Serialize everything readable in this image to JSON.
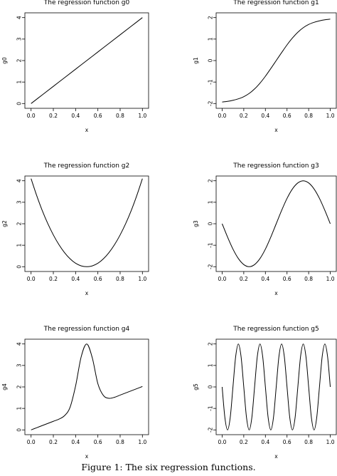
{
  "caption": "Figure 1: The six regression functions.",
  "chart_data": [
    {
      "type": "line",
      "title": "The regression function g0",
      "xlabel": "x",
      "ylabel": "g0",
      "xlim": [
        0,
        1
      ],
      "ylim": [
        0,
        4
      ],
      "xticks": [
        "0.0",
        "0.2",
        "0.4",
        "0.6",
        "0.8",
        "1.0"
      ],
      "yticks": [
        "0",
        "1",
        "2",
        "3",
        "4"
      ],
      "x": [
        0.0,
        0.1,
        0.2,
        0.3,
        0.4,
        0.5,
        0.6,
        0.7,
        0.8,
        0.9,
        1.0
      ],
      "y": [
        0.0,
        0.4,
        0.8,
        1.2,
        1.6,
        2.0,
        2.4,
        2.8,
        3.2,
        3.6,
        4.0
      ]
    },
    {
      "type": "line",
      "title": "The regression function g1",
      "xlabel": "x",
      "ylabel": "g1",
      "xlim": [
        0,
        1
      ],
      "ylim": [
        -2,
        2
      ],
      "xticks": [
        "0.0",
        "0.2",
        "0.4",
        "0.6",
        "0.8",
        "1.0"
      ],
      "yticks": [
        "-2",
        "-1",
        "0",
        "1",
        "2"
      ],
      "x": [
        0.0,
        0.05,
        0.1,
        0.15,
        0.2,
        0.25,
        0.3,
        0.35,
        0.4,
        0.45,
        0.5,
        0.55,
        0.6,
        0.65,
        0.7,
        0.75,
        0.8,
        0.85,
        0.9,
        0.95,
        1.0
      ],
      "y": [
        -1.93,
        -1.9,
        -1.85,
        -1.78,
        -1.68,
        -1.53,
        -1.32,
        -1.05,
        -0.73,
        -0.37,
        0.0,
        0.37,
        0.73,
        1.05,
        1.32,
        1.53,
        1.68,
        1.78,
        1.85,
        1.9,
        1.93
      ]
    },
    {
      "type": "line",
      "title": "The regression function g2",
      "xlabel": "x",
      "ylabel": "g2",
      "xlim": [
        0,
        1
      ],
      "ylim": [
        0,
        4
      ],
      "xticks": [
        "0.0",
        "0.2",
        "0.4",
        "0.6",
        "0.8",
        "1.0"
      ],
      "yticks": [
        "0",
        "1",
        "2",
        "3",
        "4"
      ],
      "x": [
        0.0,
        0.05,
        0.1,
        0.15,
        0.2,
        0.25,
        0.3,
        0.35,
        0.4,
        0.45,
        0.5,
        0.55,
        0.6,
        0.65,
        0.7,
        0.75,
        0.8,
        0.85,
        0.9,
        0.95,
        1.0
      ],
      "y": [
        4.1,
        3.32,
        2.62,
        2.01,
        1.48,
        1.03,
        0.66,
        0.37,
        0.16,
        0.04,
        0.0,
        0.04,
        0.16,
        0.37,
        0.66,
        1.03,
        1.48,
        2.01,
        2.62,
        3.32,
        4.1
      ]
    },
    {
      "type": "line",
      "title": "The regression function g3",
      "xlabel": "x",
      "ylabel": "g3",
      "xlim": [
        0,
        1
      ],
      "ylim": [
        -2,
        2
      ],
      "xticks": [
        "0.0",
        "0.2",
        "0.4",
        "0.6",
        "0.8",
        "1.0"
      ],
      "yticks": [
        "-2",
        "-1",
        "0",
        "1",
        "2"
      ],
      "x": [
        0.0,
        0.05,
        0.1,
        0.15,
        0.2,
        0.25,
        0.3,
        0.35,
        0.4,
        0.45,
        0.5,
        0.55,
        0.6,
        0.65,
        0.7,
        0.75,
        0.8,
        0.85,
        0.9,
        0.95,
        1.0
      ],
      "y": [
        0.0,
        -0.62,
        -1.18,
        -1.62,
        -1.9,
        -2.0,
        -1.9,
        -1.62,
        -1.18,
        -0.62,
        0.0,
        0.62,
        1.18,
        1.62,
        1.9,
        2.0,
        1.9,
        1.62,
        1.18,
        0.62,
        0.0
      ]
    },
    {
      "type": "line",
      "title": "The regression function g4",
      "xlabel": "x",
      "ylabel": "g4",
      "xlim": [
        0,
        1
      ],
      "ylim": [
        0,
        4
      ],
      "xticks": [
        "0.0",
        "0.2",
        "0.4",
        "0.6",
        "0.8",
        "1.0"
      ],
      "yticks": [
        "0",
        "1",
        "2",
        "3",
        "4"
      ],
      "x": [
        0.0,
        0.05,
        0.1,
        0.15,
        0.2,
        0.25,
        0.3,
        0.35,
        0.4,
        0.45,
        0.5,
        0.55,
        0.6,
        0.65,
        0.7,
        0.75,
        0.8,
        0.85,
        0.9,
        0.95,
        1.0
      ],
      "y": [
        0.0,
        0.1,
        0.2,
        0.3,
        0.4,
        0.5,
        0.66,
        1.05,
        2.05,
        3.4,
        4.0,
        3.35,
        2.15,
        1.6,
        1.47,
        1.52,
        1.62,
        1.72,
        1.82,
        1.92,
        2.02
      ]
    },
    {
      "type": "line",
      "title": "The regression function g5",
      "xlabel": "x",
      "ylabel": "g5",
      "xlim": [
        0,
        1
      ],
      "ylim": [
        -2,
        2
      ],
      "xticks": [
        "0.0",
        "0.2",
        "0.4",
        "0.6",
        "0.8",
        "1.0"
      ],
      "yticks": [
        "-2",
        "-1",
        "0",
        "1",
        "2"
      ],
      "x": [
        0.0,
        0.025,
        0.05,
        0.075,
        0.1,
        0.125,
        0.15,
        0.175,
        0.2,
        0.225,
        0.25,
        0.275,
        0.3,
        0.325,
        0.35,
        0.375,
        0.4,
        0.425,
        0.45,
        0.475,
        0.5,
        0.525,
        0.55,
        0.575,
        0.6,
        0.625,
        0.65,
        0.675,
        0.7,
        0.725,
        0.75,
        0.775,
        0.8,
        0.825,
        0.85,
        0.875,
        0.9,
        0.925,
        0.95,
        0.975,
        1.0
      ],
      "y": [
        0.0,
        -1.41,
        -2.0,
        -1.41,
        0.0,
        1.41,
        2.0,
        1.41,
        0.0,
        -1.41,
        -2.0,
        -1.41,
        0.0,
        1.41,
        2.0,
        1.41,
        0.0,
        -1.41,
        -2.0,
        -1.41,
        0.0,
        1.41,
        2.0,
        1.41,
        0.0,
        -1.41,
        -2.0,
        -1.41,
        0.0,
        1.41,
        2.0,
        1.41,
        0.0,
        -1.41,
        -2.0,
        -1.41,
        0.0,
        1.41,
        2.0,
        1.41,
        0.0
      ]
    }
  ]
}
